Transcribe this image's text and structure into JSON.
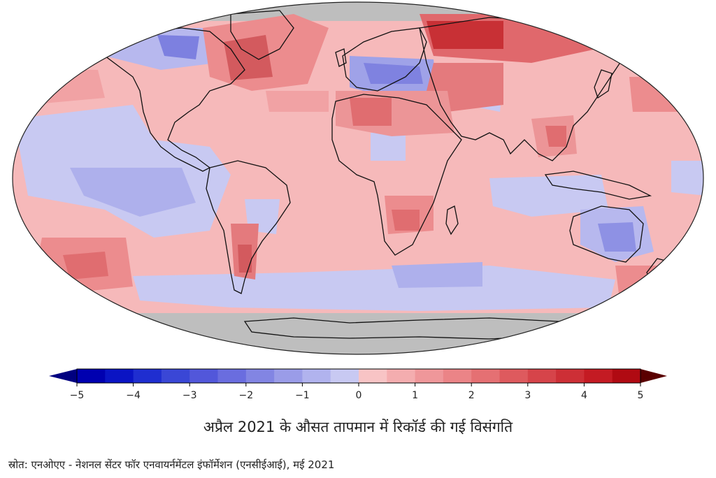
{
  "caption": "अप्रैल 2021 के औसत तापमान में रिकॉर्ड की गई विसंगति",
  "source": "स्रोत: एनओएए - नेशनल सेंटर फॉर एनवायर्नमेंटल इंफॉर्मेशन (एनसीईआई), मई 2021",
  "colorbar": {
    "ticks": [
      "−5",
      "−4",
      "−3",
      "−2",
      "−1",
      "0",
      "1",
      "2",
      "3",
      "4",
      "5"
    ],
    "min": -5,
    "max": 5
  },
  "colors": {
    "ocean_gray": "#bebebe",
    "neutral_pink": "#f6b9ba",
    "cool_light": "#c8c9f2",
    "warm_mid": "#ec8c8e",
    "warm_strong": "#d33a3e",
    "cool_strong": "#5b5fd8",
    "coast": "#111111"
  }
}
